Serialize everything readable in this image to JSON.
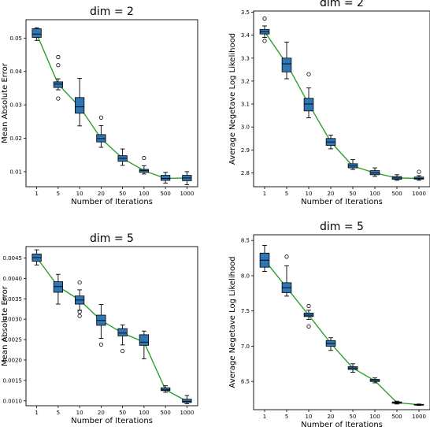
{
  "chart_data": [
    {
      "type": "box",
      "title": "dim = 2",
      "xlabel": "Number of Iterations",
      "ylabel": "Mean Absolute Error",
      "categories": [
        "1",
        "5",
        "10",
        "20",
        "50",
        "100",
        "500",
        "1000"
      ],
      "ylim": [
        0.0055,
        0.0555
      ],
      "yticks": [
        "0.01",
        "0.02",
        "0.03",
        "0.04",
        "0.05"
      ],
      "ytick_values": [
        0.01,
        0.02,
        0.03,
        0.04,
        0.05
      ],
      "series": [
        {
          "boxes": [
            {
              "whislo": 0.0493,
              "q1": 0.0502,
              "med": 0.0512,
              "q3": 0.0528,
              "whishi": 0.0531,
              "fliers": []
            },
            {
              "whislo": 0.0345,
              "q1": 0.0352,
              "med": 0.0362,
              "q3": 0.0369,
              "whishi": 0.0378,
              "fliers": [
                0.0319,
                0.0419,
                0.0443
              ]
            },
            {
              "whislo": 0.0237,
              "q1": 0.0275,
              "med": 0.0294,
              "q3": 0.0322,
              "whishi": 0.0379,
              "fliers": []
            },
            {
              "whislo": 0.0173,
              "q1": 0.0189,
              "med": 0.0199,
              "q3": 0.0211,
              "whishi": 0.0238,
              "fliers": [
                0.0262
              ]
            },
            {
              "whislo": 0.0119,
              "q1": 0.0131,
              "med": 0.014,
              "q3": 0.0148,
              "whishi": 0.0168,
              "fliers": []
            },
            {
              "whislo": 0.0093,
              "q1": 0.0098,
              "med": 0.0103,
              "q3": 0.0107,
              "whishi": 0.0118,
              "fliers": [
                0.0141
              ]
            },
            {
              "whislo": 0.0066,
              "q1": 0.0074,
              "med": 0.008,
              "q3": 0.0089,
              "whishi": 0.0098,
              "fliers": []
            },
            {
              "whislo": 0.0061,
              "q1": 0.0073,
              "med": 0.0081,
              "q3": 0.0089,
              "whishi": 0.01,
              "fliers": []
            }
          ],
          "line": [
            0.0512,
            0.0362,
            0.0294,
            0.0199,
            0.014,
            0.0103,
            0.008,
            0.0081
          ]
        }
      ],
      "colors": {
        "box": "#2f77b4",
        "line": "#2ca02c"
      }
    },
    {
      "type": "box",
      "title": "dim = 2",
      "xlabel": "Number of Iterations",
      "ylabel": "Average Negetave Log Likelihood",
      "categories": [
        "1",
        "5",
        "10",
        "20",
        "50",
        "100",
        "500",
        "1000"
      ],
      "ylim": [
        2.74,
        3.505
      ],
      "yticks": [
        "2.8",
        "2.9",
        "3.0",
        "3.1",
        "3.2",
        "3.3",
        "3.4",
        "3.5"
      ],
      "ytick_values": [
        2.8,
        2.9,
        3.0,
        3.1,
        3.2,
        3.3,
        3.4,
        3.5
      ],
      "series": [
        {
          "boxes": [
            {
              "whislo": 3.39,
              "q1": 3.405,
              "med": 3.415,
              "q3": 3.425,
              "whishi": 3.44,
              "fliers": [
                3.375,
                3.472
              ]
            },
            {
              "whislo": 3.21,
              "q1": 3.24,
              "med": 3.275,
              "q3": 3.3,
              "whishi": 3.37,
              "fliers": []
            },
            {
              "whislo": 3.04,
              "q1": 3.07,
              "med": 3.1,
              "q3": 3.125,
              "whishi": 3.17,
              "fliers": [
                3.23
              ]
            },
            {
              "whislo": 2.905,
              "q1": 2.92,
              "med": 2.935,
              "q3": 2.95,
              "whishi": 2.965,
              "fliers": []
            },
            {
              "whislo": 2.815,
              "q1": 2.822,
              "med": 2.83,
              "q3": 2.84,
              "whishi": 2.858,
              "fliers": []
            },
            {
              "whislo": 2.785,
              "q1": 2.792,
              "med": 2.8,
              "q3": 2.81,
              "whishi": 2.822,
              "fliers": []
            },
            {
              "whislo": 2.768,
              "q1": 2.772,
              "med": 2.778,
              "q3": 2.784,
              "whishi": 2.792,
              "fliers": []
            },
            {
              "whislo": 2.768,
              "q1": 2.773,
              "med": 2.776,
              "q3": 2.782,
              "whishi": 2.788,
              "fliers": [
                2.805
              ]
            }
          ],
          "line": [
            3.415,
            3.275,
            3.1,
            2.935,
            2.83,
            2.8,
            2.778,
            2.776
          ]
        }
      ],
      "colors": {
        "box": "#2f77b4",
        "line": "#2ca02c"
      }
    },
    {
      "type": "box",
      "title": "dim = 5",
      "xlabel": "Number of Iterations",
      "ylabel": "Mean Absolute Error",
      "categories": [
        "1",
        "5",
        "10",
        "20",
        "50",
        "100",
        "500",
        "1000"
      ],
      "ylim": [
        0.00088,
        0.00478
      ],
      "yticks": [
        "0.0010",
        "0.0015",
        "0.0020",
        "0.0025",
        "0.0030",
        "0.0035",
        "0.0040",
        "0.0045"
      ],
      "ytick_values": [
        0.001,
        0.0015,
        0.002,
        0.0025,
        0.003,
        0.0035,
        0.004,
        0.0045
      ],
      "series": [
        {
          "boxes": [
            {
              "whislo": 0.00433,
              "q1": 0.00442,
              "med": 0.00451,
              "q3": 0.0046,
              "whishi": 0.0047,
              "fliers": []
            },
            {
              "whislo": 0.00337,
              "q1": 0.00366,
              "med": 0.0038,
              "q3": 0.00392,
              "whishi": 0.0041,
              "fliers": []
            },
            {
              "whislo": 0.00322,
              "q1": 0.00337,
              "med": 0.00347,
              "q3": 0.00357,
              "whishi": 0.00372,
              "fliers": [
                0.00308,
                0.00318,
                0.0039
              ]
            },
            {
              "whislo": 0.00253,
              "q1": 0.00285,
              "med": 0.00297,
              "q3": 0.0031,
              "whishi": 0.00336,
              "fliers": [
                0.00238
              ]
            },
            {
              "whislo": 0.00237,
              "q1": 0.00259,
              "med": 0.00266,
              "q3": 0.00277,
              "whishi": 0.00286,
              "fliers": [
                0.00222
              ]
            },
            {
              "whislo": 0.00203,
              "q1": 0.00236,
              "med": 0.00244,
              "q3": 0.00262,
              "whishi": 0.00271,
              "fliers": []
            },
            {
              "whislo": 0.00121,
              "q1": 0.00125,
              "med": 0.00127,
              "q3": 0.00132,
              "whishi": 0.00137,
              "fliers": []
            },
            {
              "whislo": 0.00093,
              "q1": 0.00096,
              "med": 0.00099,
              "q3": 0.00104,
              "whishi": 0.00113,
              "fliers": []
            }
          ],
          "line": [
            0.00451,
            0.0038,
            0.00347,
            0.00297,
            0.00266,
            0.00244,
            0.00127,
            0.00099
          ]
        }
      ],
      "colors": {
        "box": "#2f77b4",
        "line": "#2ca02c"
      }
    },
    {
      "type": "box",
      "title": "dim = 5",
      "xlabel": "Number of Iterations",
      "ylabel": "Average Negetave Log Likelihood",
      "categories": [
        "1",
        "5",
        "10",
        "20",
        "50",
        "100",
        "500",
        "1000"
      ],
      "ylim": [
        6.1,
        8.58
      ],
      "yticks": [
        "6.5",
        "7.0",
        "7.5",
        "8.0",
        "8.5"
      ],
      "ytick_values": [
        6.5,
        7.0,
        7.5,
        8.0,
        8.5
      ],
      "series": [
        {
          "boxes": [
            {
              "whislo": 8.06,
              "q1": 8.12,
              "med": 8.22,
              "q3": 8.32,
              "whishi": 8.43,
              "fliers": []
            },
            {
              "whislo": 7.71,
              "q1": 7.76,
              "med": 7.83,
              "q3": 7.9,
              "whishi": 8.14,
              "fliers": [
                8.27
              ]
            },
            {
              "whislo": 7.38,
              "q1": 7.42,
              "med": 7.44,
              "q3": 7.47,
              "whishi": 7.51,
              "fliers": [
                7.28,
                7.57
              ]
            },
            {
              "whislo": 6.94,
              "q1": 7.0,
              "med": 7.04,
              "q3": 7.08,
              "whishi": 7.12,
              "fliers": []
            },
            {
              "whislo": 6.63,
              "q1": 6.67,
              "med": 6.69,
              "q3": 6.71,
              "whishi": 6.75,
              "fliers": []
            },
            {
              "whislo": 6.48,
              "q1": 6.5,
              "med": 6.51,
              "q3": 6.53,
              "whishi": 6.55,
              "fliers": []
            },
            {
              "whislo": 6.18,
              "q1": 6.19,
              "med": 6.2,
              "q3": 6.21,
              "whishi": 6.22,
              "fliers": []
            },
            {
              "whislo": 6.16,
              "q1": 6.165,
              "med": 6.17,
              "q3": 6.175,
              "whishi": 6.18,
              "fliers": []
            }
          ],
          "line": [
            8.22,
            7.83,
            7.44,
            7.04,
            6.69,
            6.51,
            6.2,
            6.17
          ]
        }
      ],
      "colors": {
        "box": "#2f77b4",
        "line": "#2ca02c"
      }
    }
  ]
}
